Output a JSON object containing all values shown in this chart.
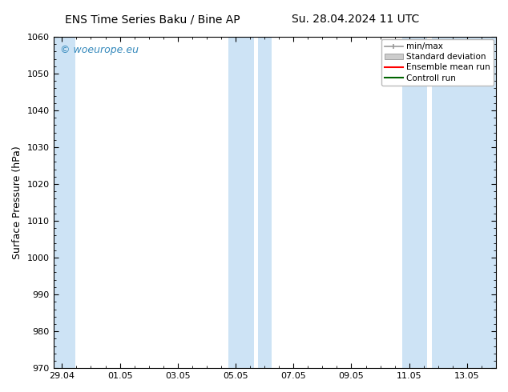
{
  "title_left": "ENS Time Series Baku / Bine AP",
  "title_right": "Su. 28.04.2024 11 UTC",
  "ylabel": "Surface Pressure (hPa)",
  "ylim": [
    970,
    1060
  ],
  "yticks": [
    970,
    980,
    990,
    1000,
    1010,
    1020,
    1030,
    1040,
    1050,
    1060
  ],
  "xtick_labels": [
    "29.04",
    "01.05",
    "03.05",
    "05.05",
    "07.05",
    "09.05",
    "11.05",
    "13.05"
  ],
  "xtick_positions": [
    0,
    2,
    4,
    6,
    8,
    10,
    12,
    14
  ],
  "shaded_color": "#cde3f5",
  "watermark_text": "© woeurope.eu",
  "watermark_color": "#3388bb",
  "legend_items": [
    {
      "label": "min/max",
      "color": "#aaaaaa"
    },
    {
      "label": "Standard deviation",
      "color": "#cccccc"
    },
    {
      "label": "Ensemble mean run",
      "color": "red"
    },
    {
      "label": "Controll run",
      "color": "green"
    }
  ],
  "background_color": "#ffffff",
  "title_fontsize": 10,
  "ylabel_fontsize": 9,
  "tick_fontsize": 8,
  "watermark_fontsize": 9,
  "legend_fontsize": 7.5
}
